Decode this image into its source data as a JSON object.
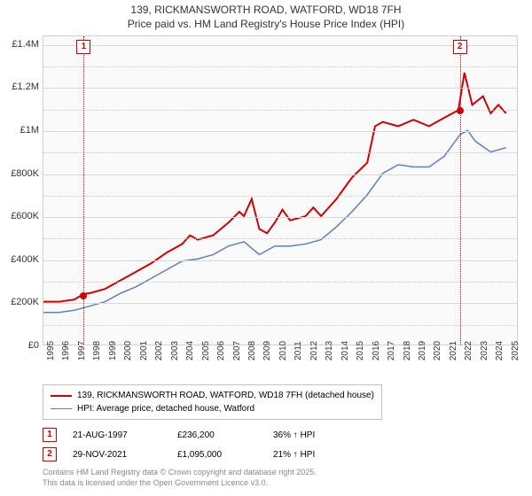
{
  "title": {
    "line1": "139, RICKMANSWORTH ROAD, WATFORD, WD18 7FH",
    "line2": "Price paid vs. HM Land Registry's House Price Index (HPI)"
  },
  "chart": {
    "type": "line",
    "background_color": "#fafafa",
    "grid_color": "#d8d8d8",
    "border_color": "#d0d0d0",
    "title_fontsize": 12,
    "tick_fontsize": 10,
    "x_axis": {
      "min_year": 1995,
      "max_year": 2025,
      "ticks": [
        1995,
        1996,
        1997,
        1998,
        1999,
        2000,
        2001,
        2002,
        2003,
        2004,
        2005,
        2006,
        2007,
        2008,
        2009,
        2010,
        2011,
        2012,
        2013,
        2014,
        2015,
        2016,
        2017,
        2018,
        2019,
        2020,
        2021,
        2022,
        2023,
        2024,
        2025
      ],
      "label_rotation": -90
    },
    "y_axis": {
      "min": 0,
      "max": 1440000,
      "ticks": [
        {
          "v": 0,
          "label": "£0"
        },
        {
          "v": 200000,
          "label": "£200K"
        },
        {
          "v": 400000,
          "label": "£400K"
        },
        {
          "v": 600000,
          "label": "£600K"
        },
        {
          "v": 800000,
          "label": "£800K"
        },
        {
          "v": 1000000,
          "label": "£1M"
        },
        {
          "v": 1200000,
          "label": "£1.2M"
        },
        {
          "v": 1400000,
          "label": "£1.4M"
        }
      ]
    },
    "series": [
      {
        "name": "property",
        "label": "139, RICKMANSWORTH ROAD, WATFORD, WD18 7FH (detached house)",
        "color": "#d00000",
        "line_width": 2,
        "points": [
          {
            "year": 1995.0,
            "value": 200000
          },
          {
            "year": 1996.0,
            "value": 200000
          },
          {
            "year": 1997.0,
            "value": 210000
          },
          {
            "year": 1997.6,
            "value": 236200
          },
          {
            "year": 1998.0,
            "value": 240000
          },
          {
            "year": 1999.0,
            "value": 260000
          },
          {
            "year": 2000.0,
            "value": 300000
          },
          {
            "year": 2001.0,
            "value": 340000
          },
          {
            "year": 2002.0,
            "value": 380000
          },
          {
            "year": 2003.0,
            "value": 430000
          },
          {
            "year": 2004.0,
            "value": 470000
          },
          {
            "year": 2004.5,
            "value": 510000
          },
          {
            "year": 2005.0,
            "value": 490000
          },
          {
            "year": 2006.0,
            "value": 510000
          },
          {
            "year": 2007.0,
            "value": 570000
          },
          {
            "year": 2007.7,
            "value": 620000
          },
          {
            "year": 2008.0,
            "value": 600000
          },
          {
            "year": 2008.5,
            "value": 680000
          },
          {
            "year": 2009.0,
            "value": 540000
          },
          {
            "year": 2009.5,
            "value": 520000
          },
          {
            "year": 2010.0,
            "value": 570000
          },
          {
            "year": 2010.5,
            "value": 630000
          },
          {
            "year": 2011.0,
            "value": 580000
          },
          {
            "year": 2012.0,
            "value": 600000
          },
          {
            "year": 2012.5,
            "value": 640000
          },
          {
            "year": 2013.0,
            "value": 600000
          },
          {
            "year": 2014.0,
            "value": 680000
          },
          {
            "year": 2015.0,
            "value": 780000
          },
          {
            "year": 2016.0,
            "value": 850000
          },
          {
            "year": 2016.5,
            "value": 1020000
          },
          {
            "year": 2017.0,
            "value": 1040000
          },
          {
            "year": 2018.0,
            "value": 1020000
          },
          {
            "year": 2019.0,
            "value": 1050000
          },
          {
            "year": 2020.0,
            "value": 1020000
          },
          {
            "year": 2021.0,
            "value": 1060000
          },
          {
            "year": 2021.9,
            "value": 1095000
          },
          {
            "year": 2022.3,
            "value": 1270000
          },
          {
            "year": 2022.8,
            "value": 1120000
          },
          {
            "year": 2023.5,
            "value": 1160000
          },
          {
            "year": 2024.0,
            "value": 1080000
          },
          {
            "year": 2024.5,
            "value": 1120000
          },
          {
            "year": 2025.0,
            "value": 1080000
          }
        ]
      },
      {
        "name": "hpi",
        "label": "HPI: Average price, detached house, Watford",
        "color": "#5a7fc0",
        "line_width": 1.5,
        "points": [
          {
            "year": 1995.0,
            "value": 150000
          },
          {
            "year": 1996.0,
            "value": 150000
          },
          {
            "year": 1997.0,
            "value": 160000
          },
          {
            "year": 1998.0,
            "value": 180000
          },
          {
            "year": 1999.0,
            "value": 200000
          },
          {
            "year": 2000.0,
            "value": 240000
          },
          {
            "year": 2001.0,
            "value": 270000
          },
          {
            "year": 2002.0,
            "value": 310000
          },
          {
            "year": 2003.0,
            "value": 350000
          },
          {
            "year": 2004.0,
            "value": 390000
          },
          {
            "year": 2005.0,
            "value": 400000
          },
          {
            "year": 2006.0,
            "value": 420000
          },
          {
            "year": 2007.0,
            "value": 460000
          },
          {
            "year": 2008.0,
            "value": 480000
          },
          {
            "year": 2009.0,
            "value": 420000
          },
          {
            "year": 2010.0,
            "value": 460000
          },
          {
            "year": 2011.0,
            "value": 460000
          },
          {
            "year": 2012.0,
            "value": 470000
          },
          {
            "year": 2013.0,
            "value": 490000
          },
          {
            "year": 2014.0,
            "value": 550000
          },
          {
            "year": 2015.0,
            "value": 620000
          },
          {
            "year": 2016.0,
            "value": 700000
          },
          {
            "year": 2017.0,
            "value": 800000
          },
          {
            "year": 2018.0,
            "value": 840000
          },
          {
            "year": 2019.0,
            "value": 830000
          },
          {
            "year": 2020.0,
            "value": 830000
          },
          {
            "year": 2021.0,
            "value": 880000
          },
          {
            "year": 2022.0,
            "value": 980000
          },
          {
            "year": 2022.5,
            "value": 1000000
          },
          {
            "year": 2023.0,
            "value": 950000
          },
          {
            "year": 2024.0,
            "value": 900000
          },
          {
            "year": 2025.0,
            "value": 920000
          }
        ]
      }
    ],
    "markers": [
      {
        "id": "1",
        "year": 1997.6,
        "value": 236200
      },
      {
        "id": "2",
        "year": 2021.9,
        "value": 1095000
      }
    ]
  },
  "legend": {
    "items": [
      {
        "color": "#d00000",
        "width": 2,
        "label": "139, RICKMANSWORTH ROAD, WATFORD, WD18 7FH (detached house)"
      },
      {
        "color": "#5a7fc0",
        "width": 1.5,
        "label": "HPI: Average price, detached house, Watford"
      }
    ]
  },
  "sales": [
    {
      "marker": "1",
      "date": "21-AUG-1997",
      "price": "£236,200",
      "hpi": "36% ↑ HPI"
    },
    {
      "marker": "2",
      "date": "29-NOV-2021",
      "price": "£1,095,000",
      "hpi": "21% ↑ HPI"
    }
  ],
  "footer": {
    "line1": "Contains HM Land Registry data © Crown copyright and database right 2025.",
    "line2": "This data is licensed under the Open Government Licence v3.0."
  }
}
